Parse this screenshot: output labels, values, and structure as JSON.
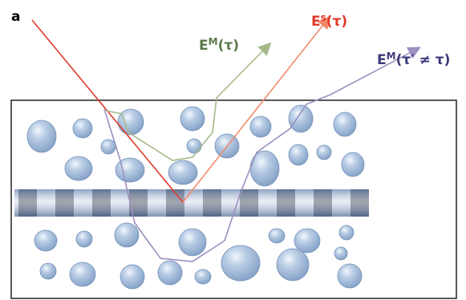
{
  "panel_label": "a",
  "labels": [
    {
      "base": "E",
      "sup": "M",
      "arg": "(τ)"
    },
    {
      "base": "E",
      "sup": "s",
      "arg": "(τ)"
    },
    {
      "base": "E",
      "sup": "M",
      "arg": "(τ′ ≠ τ)"
    }
  ]
}
